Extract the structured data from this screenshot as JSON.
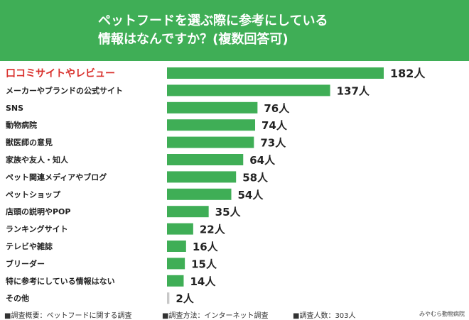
{
  "header": {
    "title_line1": "ペットフードを選ぶ際に参考にしている",
    "title_line2": "情報はなんですか？(複数回答可)"
  },
  "colors": {
    "header_bg": "#3fae56",
    "bar": "#3fae56",
    "highlight": "#d9302c",
    "other_bar": "#c8c8c8"
  },
  "chart_data": {
    "type": "bar",
    "orientation": "horizontal",
    "categories": [
      "口コミサイトやレビュー",
      "メーカーやブランドの公式サイト",
      "SNS",
      "動物病院",
      "獣医師の意見",
      "家族や友人・知人",
      "ペット関連メディアやブログ",
      "ペットショップ",
      "店頭の説明やPOP",
      "ランキングサイト",
      "テレビや雑誌",
      "ブリーダー",
      "特に参考にしている情報はない",
      "その他"
    ],
    "values": [
      182,
      137,
      76,
      74,
      73,
      64,
      58,
      54,
      35,
      22,
      16,
      15,
      14,
      2
    ],
    "value_labels": [
      "182人",
      "137人",
      "76人",
      "74人",
      "73人",
      "64人",
      "58人",
      "54人",
      "35人",
      "22人",
      "16人",
      "15人",
      "14人",
      "2人"
    ],
    "highlight_index": 0,
    "grid": false,
    "legend": "none"
  },
  "footer": {
    "item1": "■調査概要：ペットフードに関する調査",
    "item2": "■調査方法：インターネット調査",
    "item3": "■調査人数：303人",
    "credit": "みやむら動物病院"
  }
}
